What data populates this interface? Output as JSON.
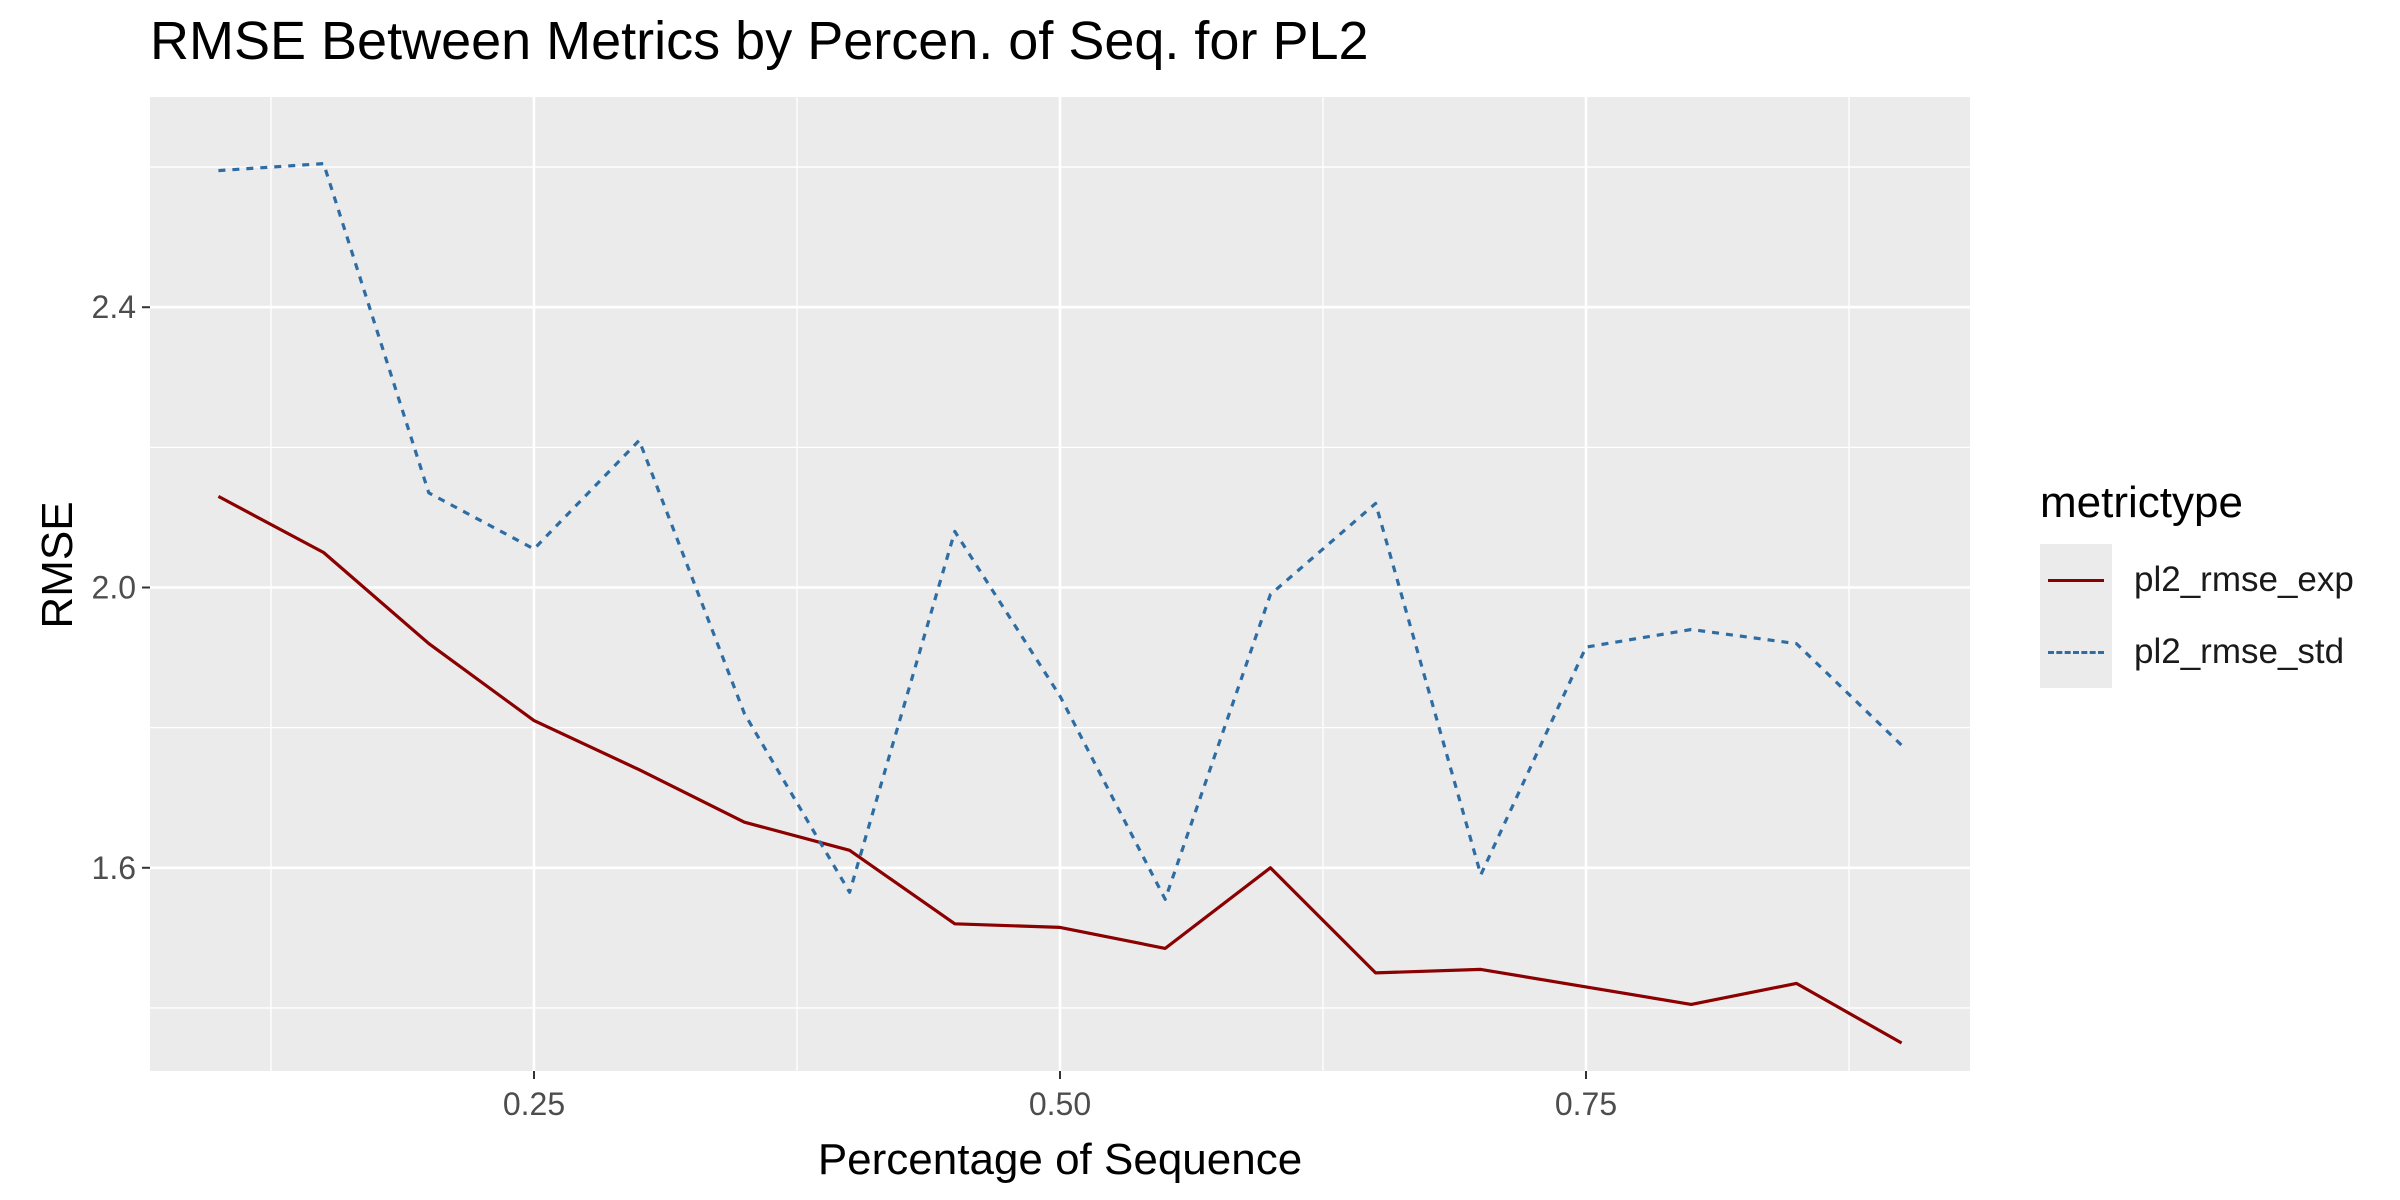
{
  "chart_data": {
    "type": "line",
    "title": "RMSE Between Metrics by Percen. of Seq. for PL2",
    "xlabel": "Percentage of Sequence",
    "ylabel": "RMSE",
    "xlim": [
      0.0675,
      0.9325
    ],
    "ylim": [
      1.31,
      2.7
    ],
    "x_ticks": [
      0.25,
      0.5,
      0.75
    ],
    "x_tick_labels": [
      "0.25",
      "0.50",
      "0.75"
    ],
    "y_ticks": [
      1.6,
      2.0,
      2.4
    ],
    "y_tick_labels": [
      "1.6",
      "2.0",
      "2.4"
    ],
    "grid": true,
    "legend": {
      "title": "metrictype",
      "position": "right"
    },
    "x": [
      0.1,
      0.15,
      0.2,
      0.25,
      0.3,
      0.35,
      0.4,
      0.45,
      0.5,
      0.55,
      0.6,
      0.65,
      0.7,
      0.75,
      0.8,
      0.85,
      0.9
    ],
    "series": [
      {
        "name": "pl2_rmse_exp",
        "color": "#8b0000",
        "linetype": "solid",
        "values": [
          2.13,
          2.05,
          1.92,
          1.81,
          1.74,
          1.665,
          1.625,
          1.52,
          1.515,
          1.485,
          1.6,
          1.45,
          1.455,
          1.43,
          1.405,
          1.435,
          1.35
        ]
      },
      {
        "name": "pl2_rmse_std",
        "color": "#2e6da4",
        "linetype": "dashed",
        "values": [
          2.595,
          2.605,
          2.135,
          2.055,
          2.21,
          1.82,
          1.565,
          2.08,
          1.845,
          1.555,
          1.99,
          2.12,
          1.59,
          1.915,
          1.94,
          1.92,
          1.775
        ]
      }
    ]
  }
}
